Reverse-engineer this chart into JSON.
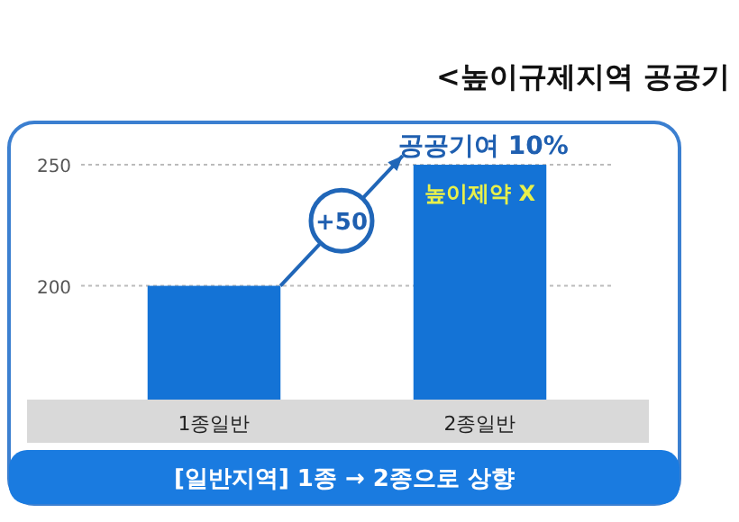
{
  "chart_data": {
    "type": "bar",
    "title": "<높이규제지역 공공기",
    "categories": [
      "1종일반",
      "2종일반"
    ],
    "values": [
      200,
      250
    ],
    "color": "#1473d6",
    "ylim": [
      153,
      266
    ],
    "yticks": [
      200,
      250
    ],
    "grid": "y",
    "annotations": [
      {
        "text": "공공기여 10%",
        "x": "2종일반",
        "y": 250
      },
      {
        "text": "높이제약 X",
        "x": "2종일반",
        "y": 250
      },
      "+50",
      "[일반지역] 1종 → 2종으로 상향"
    ]
  }
}
